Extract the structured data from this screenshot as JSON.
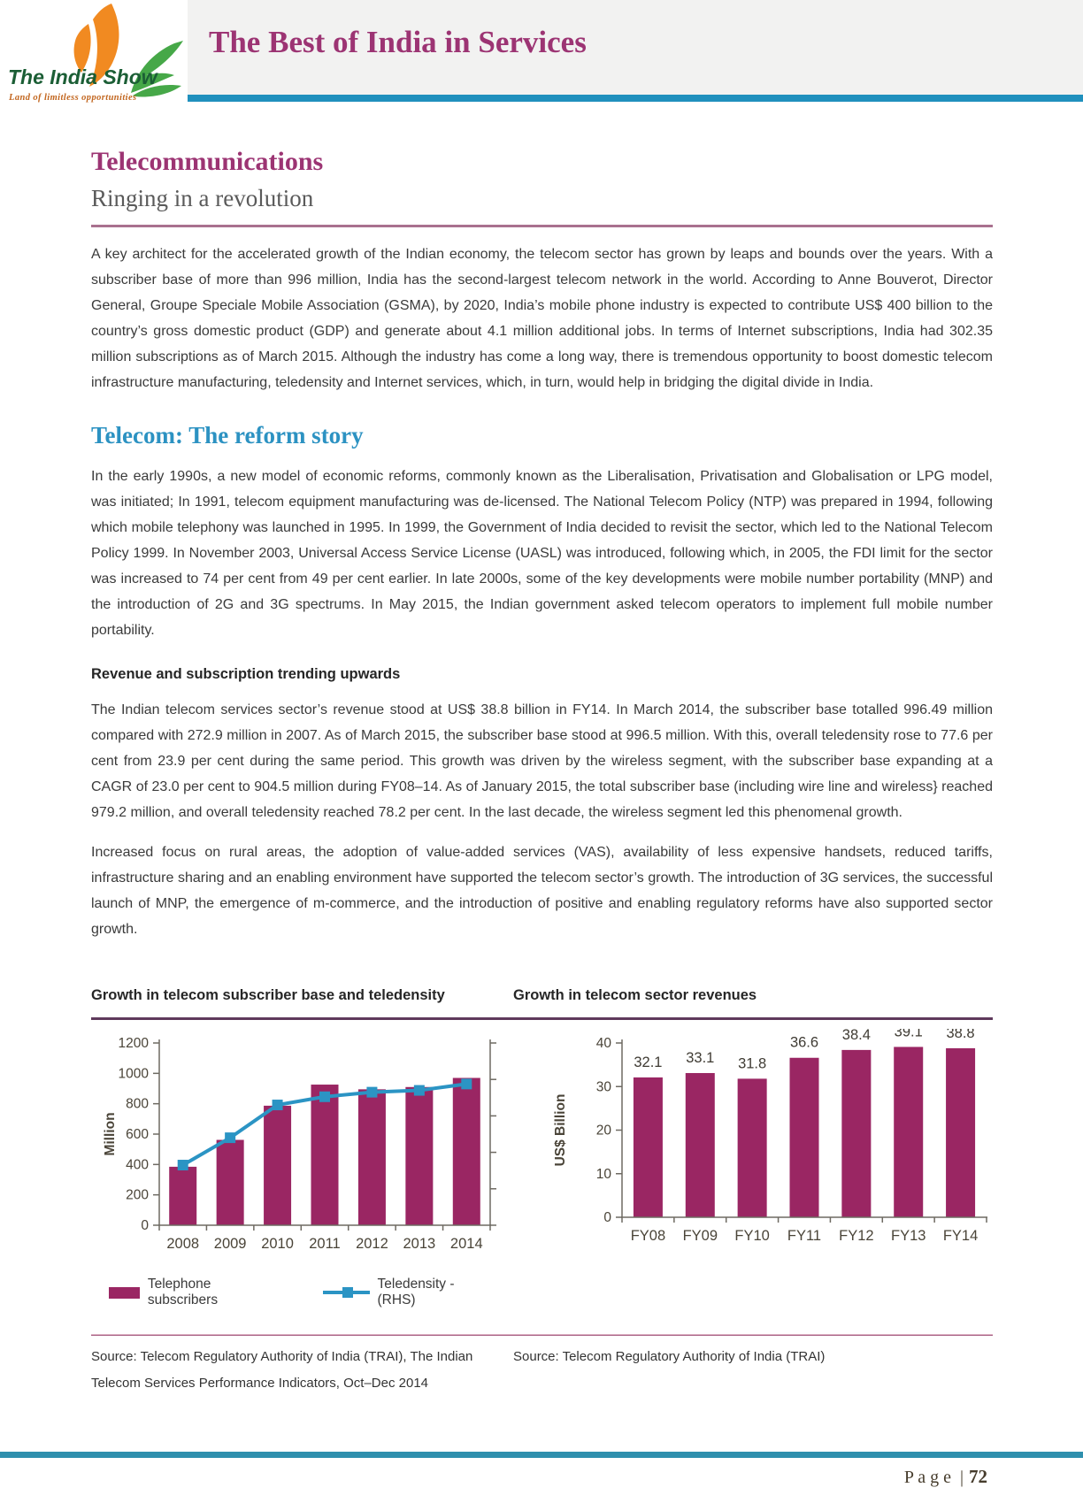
{
  "logo": {
    "title": "The India Show",
    "tagline": "Land of limitless opportunities"
  },
  "header": {
    "title": "The Best of India in Services"
  },
  "article": {
    "title": "Telecommunications",
    "subtitle": "Ringing in a revolution",
    "intro": "A key architect for the accelerated growth of the Indian economy, the telecom sector has grown by leaps and bounds over the years. With a subscriber base of more than 996 million, India has the second-largest telecom network in the world. According to Anne Bouverot, Director General, Groupe Speciale Mobile Association (GSMA), by 2020, India’s mobile phone industry is expected to contribute US$ 400 billion to the country’s gross domestic product (GDP) and generate about 4.1 million additional jobs. In terms of Internet subscriptions, India had 302.35 million subscriptions as of March 2015. Although the industry has come a long way, there is tremendous opportunity to boost domestic telecom infrastructure manufacturing, teledensity and Internet services, which, in turn, would help in bridging the digital divide in India.",
    "reform_title": "Telecom: The reform story",
    "reform_body": "In the early 1990s, a new model of economic reforms, commonly known as the Liberalisation, Privatisation and Globalisation or LPG model, was initiated; In 1991, telecom equipment manufacturing was de-licensed. The National Telecom Policy (NTP) was prepared in 1994, following which mobile telephony was launched in 1995. In 1999, the Government of India decided to revisit the sector, which led to the National Telecom Policy 1999. In November 2003, Universal Access Service License (UASL) was introduced, following which, in 2005, the FDI limit for the sector was increased to 74 per cent from 49 per cent earlier. In late 2000s, some of the key developments were mobile number portability (MNP) and the introduction of 2G and 3G spectrums. In May 2015, the Indian government asked telecom operators to implement full mobile number portability.",
    "revenue_heading": "Revenue and subscription trending upwards",
    "revenue_body": "The Indian telecom services sector’s revenue stood at US$ 38.8 billion in FY14. In March 2014, the subscriber base totalled 996.49 million compared with 272.9 million in 2007. As of March 2015, the subscriber base stood at 996.5 million. With this, overall teledensity rose to 77.6 per cent from 23.9 per cent during the same period. This growth was driven by the wireless segment, with the subscriber base expanding at a CAGR of 23.0 per cent to 904.5 million during FY08–14. As of January 2015, the total subscriber base (including wire line and wireless} reached 979.2 million, and overall teledensity reached 78.2 per cent. In the last decade, the wireless segment led this phenomenal growth.",
    "growth_body": "Increased focus on rural areas, the adoption of value-added services (VAS), availability of less expensive handsets, reduced tariffs, infrastructure sharing and an enabling environment have supported the telecom sector’s growth. The introduction of 3G services, the successful launch of MNP, the emergence of m-commerce, and the introduction of positive and enabling regulatory reforms have also supported sector growth."
  },
  "chart_data": [
    {
      "type": "bar",
      "title": "Growth in telecom subscriber base and teledensity",
      "categories": [
        "2008",
        "2009",
        "2010",
        "2011",
        "2012",
        "2013",
        "2014"
      ],
      "series": [
        {
          "name": "Telephone subscribers",
          "type": "bar",
          "axis": "left",
          "values": [
            385,
            562,
            787,
            926,
            895,
            910,
            970
          ]
        },
        {
          "name": "Teledensity - (RHS)",
          "type": "line",
          "axis": "right",
          "values": [
            33,
            48,
            66,
            70.5,
            73,
            74,
            77.5
          ]
        }
      ],
      "left_axis": {
        "label": "Million",
        "min": 0,
        "max": 1200,
        "step": 200
      },
      "right_axis": {
        "min": 0,
        "max": 100,
        "step": 20
      },
      "grid": false,
      "legend_position": "bottom",
      "source": "Source: Telecom Regulatory Authority of India (TRAI), The Indian Telecom Services Performance Indicators, Oct–Dec 2014"
    },
    {
      "type": "bar",
      "title": "Growth in telecom sector revenues",
      "categories": [
        "FY08",
        "FY09",
        "FY10",
        "FY11",
        "FY12",
        "FY13",
        "FY14"
      ],
      "values": [
        32.1,
        33.1,
        31.8,
        36.6,
        38.4,
        39.1,
        38.8
      ],
      "ylabel": "US$ Billion",
      "yaxis": {
        "min": 0,
        "max": 40,
        "step": 10
      },
      "grid": false,
      "data_labels": true,
      "source": "Source: Telecom Regulatory Authority of India (TRAI)"
    }
  ],
  "footer": {
    "page_word": "P a g e",
    "separator": "|",
    "page_number": "72"
  },
  "colors": {
    "bar_magenta": "#9A2663",
    "line_blue": "#2B94C4",
    "heading_magenta": "#9C3473",
    "section_blue": "#2C92C2",
    "header_rule_blue": "#2090BD",
    "footer_rule_teal": "#2E8FAD",
    "dark_purple_rule": "#5F3A5C",
    "mauve_rule": "#A9718F"
  }
}
